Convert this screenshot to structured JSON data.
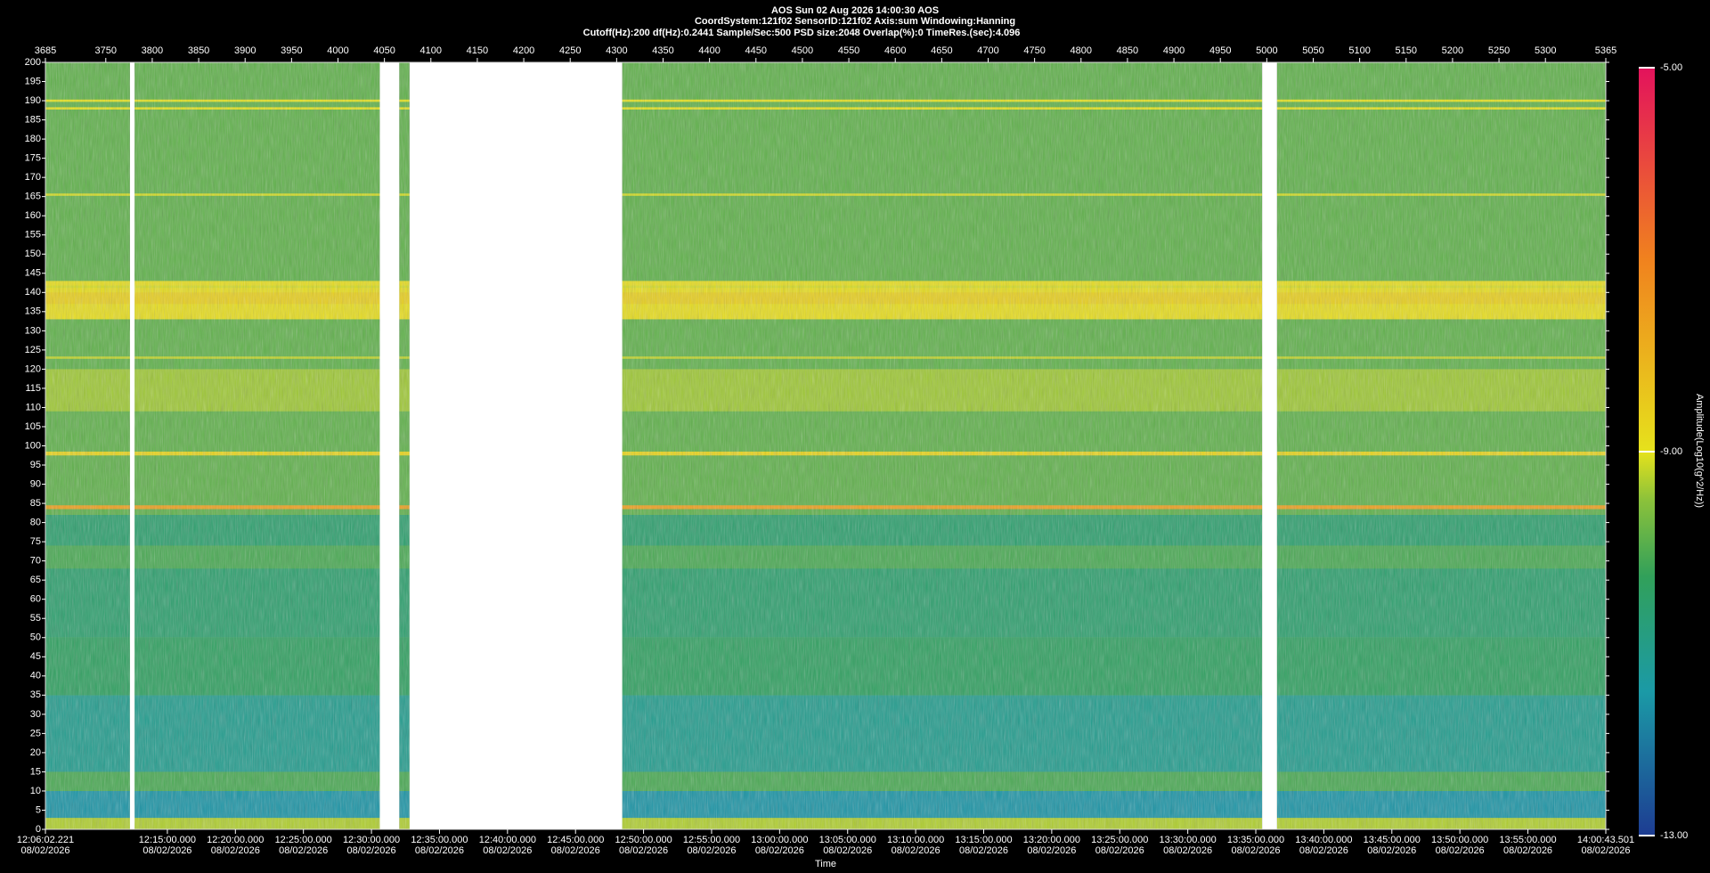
{
  "chart_data": {
    "type": "spectrogram",
    "title_lines": [
      "AOS  Sun 02 Aug 2026 14:00:30  AOS",
      "CoordSystem:121f02   SensorID:121f02   Axis:sum   Windowing:Hanning",
      "Cutoff(Hz):200      df(Hz):0.2441      Sample/Sec:500      PSD size:2048      Overlap(%):0      TimeRes.(sec):4.096"
    ],
    "xlabel": "Time",
    "xlim": [
      3685,
      5365
    ],
    "xticks": [
      3685,
      3750,
      3800,
      3850,
      3900,
      3950,
      4000,
      4050,
      4100,
      4150,
      4200,
      4250,
      4300,
      4350,
      4400,
      4450,
      4500,
      4550,
      4600,
      4650,
      4700,
      4750,
      4800,
      4850,
      4900,
      4950,
      5000,
      5050,
      5100,
      5150,
      5200,
      5250,
      5300,
      5365
    ],
    "x2lim": [
      43562.221,
      50443.501
    ],
    "x2ticks": [
      {
        "value": 43562.221,
        "label": "12:06:02.221",
        "date": "08/02/2026"
      },
      {
        "value": 44100,
        "label": "12:15:00.000",
        "date": "08/02/2026"
      },
      {
        "value": 44400,
        "label": "12:20:00.000",
        "date": "08/02/2026"
      },
      {
        "value": 44700,
        "label": "12:25:00.000",
        "date": "08/02/2026"
      },
      {
        "value": 45000,
        "label": "12:30:00.000",
        "date": "08/02/2026"
      },
      {
        "value": 45300,
        "label": "12:35:00.000",
        "date": "08/02/2026"
      },
      {
        "value": 45600,
        "label": "12:40:00.000",
        "date": "08/02/2026"
      },
      {
        "value": 45900,
        "label": "12:45:00.000",
        "date": "08/02/2026"
      },
      {
        "value": 46200,
        "label": "12:50:00.000",
        "date": "08/02/2026"
      },
      {
        "value": 46500,
        "label": "12:55:00.000",
        "date": "08/02/2026"
      },
      {
        "value": 46800,
        "label": "13:00:00.000",
        "date": "08/02/2026"
      },
      {
        "value": 47100,
        "label": "13:05:00.000",
        "date": "08/02/2026"
      },
      {
        "value": 47400,
        "label": "13:10:00.000",
        "date": "08/02/2026"
      },
      {
        "value": 47700,
        "label": "13:15:00.000",
        "date": "08/02/2026"
      },
      {
        "value": 48000,
        "label": "13:20:00.000",
        "date": "08/02/2026"
      },
      {
        "value": 48300,
        "label": "13:25:00.000",
        "date": "08/02/2026"
      },
      {
        "value": 48600,
        "label": "13:30:00.000",
        "date": "08/02/2026"
      },
      {
        "value": 48900,
        "label": "13:35:00.000",
        "date": "08/02/2026"
      },
      {
        "value": 49200,
        "label": "13:40:00.000",
        "date": "08/02/2026"
      },
      {
        "value": 49500,
        "label": "13:45:00.000",
        "date": "08/02/2026"
      },
      {
        "value": 49800,
        "label": "13:50:00.000",
        "date": "08/02/2026"
      },
      {
        "value": 50100,
        "label": "13:55:00.000",
        "date": "08/02/2026"
      },
      {
        "value": 50443.501,
        "label": "14:00:43.501",
        "date": "08/02/2026"
      }
    ],
    "ylim": [
      0,
      200
    ],
    "yticks": [
      0,
      5,
      10,
      15,
      20,
      25,
      30,
      35,
      40,
      45,
      50,
      55,
      60,
      65,
      70,
      75,
      80,
      85,
      90,
      95,
      100,
      105,
      110,
      115,
      120,
      125,
      130,
      135,
      140,
      145,
      150,
      155,
      160,
      165,
      170,
      175,
      180,
      185,
      190,
      195,
      200
    ],
    "gaps": [
      [
        3776,
        3781
      ],
      [
        4045,
        4066
      ],
      [
        4077,
        4306
      ],
      [
        4995,
        5011
      ]
    ],
    "bands": [
      {
        "lo": 0,
        "hi": 200,
        "amplitude": -9.9
      },
      {
        "lo": 0,
        "hi": 3,
        "amplitude": -9.3
      },
      {
        "lo": 3,
        "hi": 10,
        "amplitude": -11.6
      },
      {
        "lo": 10,
        "hi": 15,
        "amplitude": -10.1
      },
      {
        "lo": 15,
        "hi": 35,
        "amplitude": -11.1
      },
      {
        "lo": 35,
        "hi": 50,
        "amplitude": -10.4
      },
      {
        "lo": 50,
        "hi": 82,
        "amplitude": -10.6
      },
      {
        "lo": 68,
        "hi": 74,
        "amplitude": -10.1
      },
      {
        "lo": 83.5,
        "hi": 84.5,
        "amplitude": -7.6
      },
      {
        "lo": 86,
        "hi": 130,
        "amplitude": -9.9
      },
      {
        "lo": 109,
        "hi": 120,
        "amplitude": -9.4
      },
      {
        "lo": 133,
        "hi": 143,
        "amplitude": -8.9
      },
      {
        "lo": 137,
        "hi": 140,
        "amplitude": -8.6
      },
      {
        "lo": 97.5,
        "hi": 98.5,
        "amplitude": -8.7
      },
      {
        "lo": 122.7,
        "hi": 123.3,
        "amplitude": -9.2
      },
      {
        "lo": 141.2,
        "hi": 141.8,
        "amplitude": -9.1
      },
      {
        "lo": 165.2,
        "hi": 165.8,
        "amplitude": -9.1
      },
      {
        "lo": 187.7,
        "hi": 188.3,
        "amplitude": -9
      },
      {
        "lo": 189.7,
        "hi": 190.3,
        "amplitude": -9
      }
    ],
    "clim": [
      -13,
      -5
    ],
    "cticks": [
      {
        "value": -13,
        "label": "-13.00"
      },
      {
        "value": -9,
        "label": "-9.00"
      },
      {
        "value": -5,
        "label": "-5.00"
      }
    ],
    "clabel": "Amplitude(Log10(g^2/Hz))",
    "colormap": [
      {
        "value": -13,
        "color": "#1d3c92"
      },
      {
        "value": -11.5,
        "color": "#1b9aa6"
      },
      {
        "value": -10.3,
        "color": "#31a05a"
      },
      {
        "value": -9.5,
        "color": "#8cc23a"
      },
      {
        "value": -9,
        "color": "#e6e21c"
      },
      {
        "value": -7,
        "color": "#f0821e"
      },
      {
        "value": -5,
        "color": "#e3125c"
      }
    ]
  }
}
